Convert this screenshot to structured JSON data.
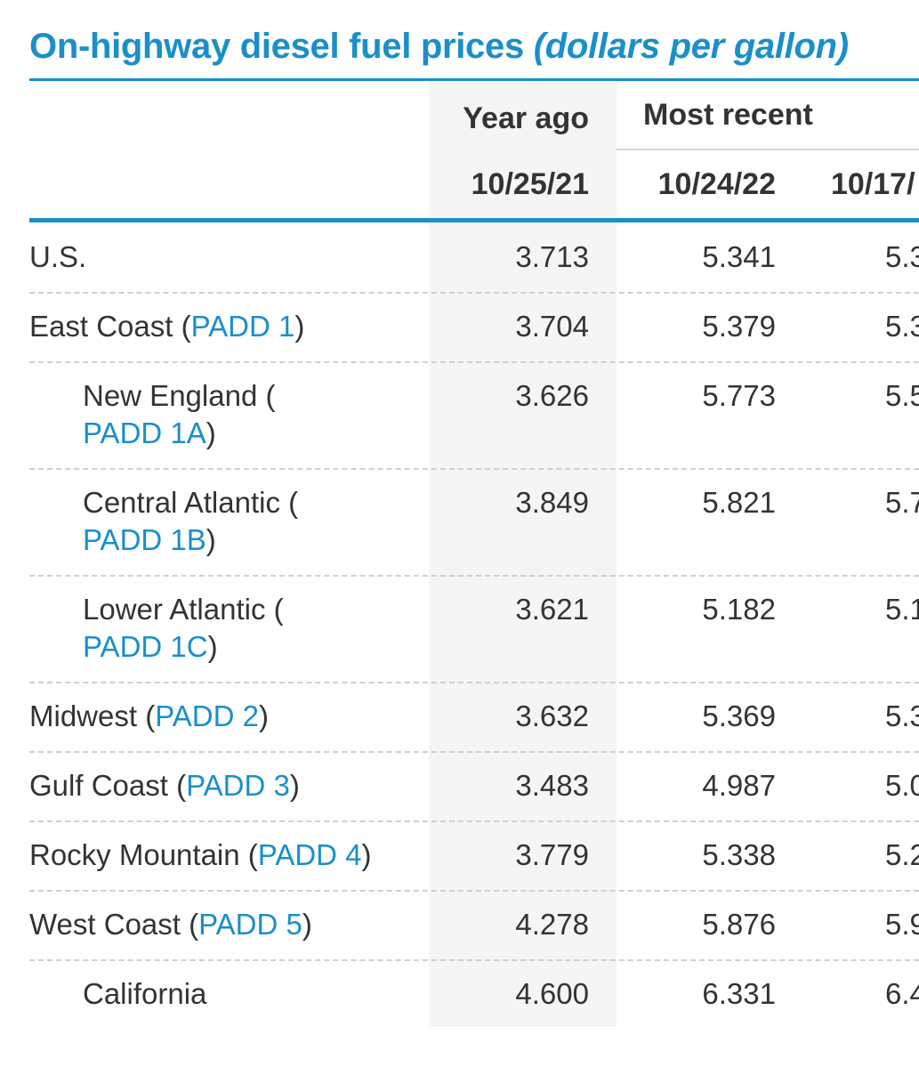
{
  "title": {
    "main": "On-highway diesel fuel prices",
    "unit": "(dollars per gallon)"
  },
  "headers": {
    "year_ago": "Year ago",
    "most_recent": "Most recent",
    "dates": [
      "10/25/21",
      "10/24/22",
      "10/17/"
    ]
  },
  "rows": [
    {
      "label": "U.S.",
      "link": "",
      "suffix": "",
      "values": [
        "3.713",
        "5.341",
        "5.3"
      ]
    },
    {
      "label": "East Coast (",
      "link": "PADD 1",
      "suffix": ")",
      "values": [
        "3.704",
        "5.379",
        "5.3"
      ]
    },
    {
      "label": "New England (",
      "link": "PADD 1A",
      "suffix": ")",
      "values": [
        "3.626",
        "5.773",
        "5.5"
      ]
    },
    {
      "label": "Central Atlantic (",
      "link": "PADD 1B",
      "suffix": ")",
      "values": [
        "3.849",
        "5.821",
        "5.7"
      ]
    },
    {
      "label": "Lower Atlantic (",
      "link": "PADD 1C",
      "suffix": ")",
      "values": [
        "3.621",
        "5.182",
        "5.1"
      ]
    },
    {
      "label": "Midwest (",
      "link": "PADD 2",
      "suffix": ")",
      "values": [
        "3.632",
        "5.369",
        "5.3"
      ]
    },
    {
      "label": "Gulf Coast (",
      "link": "PADD 3",
      "suffix": ")",
      "values": [
        "3.483",
        "4.987",
        "5.0"
      ]
    },
    {
      "label": "Rocky Mountain (",
      "link": "PADD 4",
      "suffix": ")",
      "values": [
        "3.779",
        "5.338",
        "5.2"
      ]
    },
    {
      "label": "West Coast (",
      "link": "PADD 5",
      "suffix": ")",
      "values": [
        "4.278",
        "5.876",
        "5.9"
      ]
    },
    {
      "label": "California",
      "link": "",
      "suffix": "",
      "values": [
        "4.600",
        "6.331",
        "6.4"
      ]
    }
  ],
  "colors": {
    "accent": "#1a8fc9",
    "text": "#333333",
    "year_ago_background": "#f5f5f5"
  }
}
